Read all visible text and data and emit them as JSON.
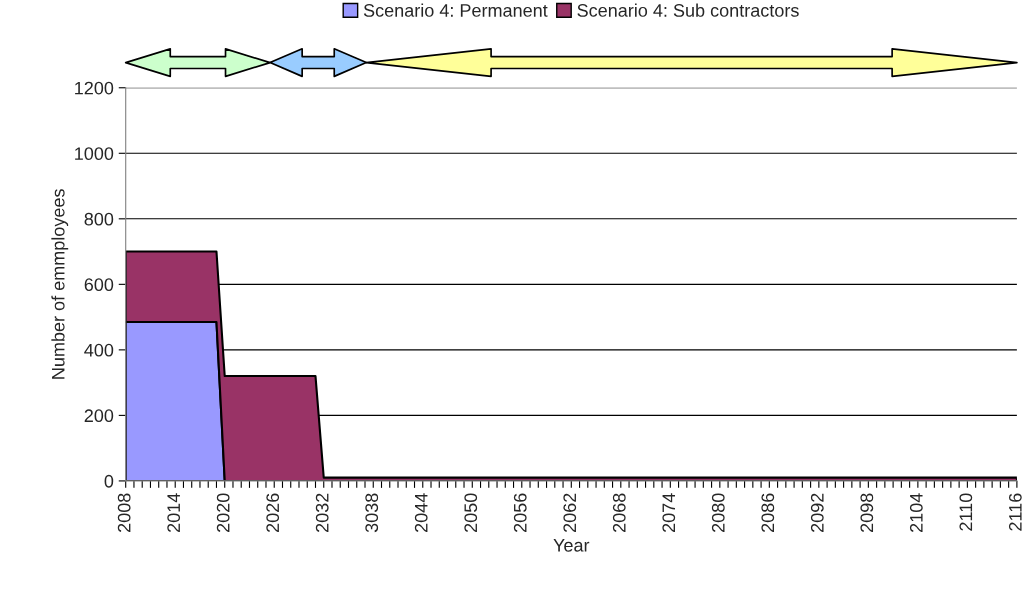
{
  "chart_data": {
    "type": "area",
    "stacked": true,
    "categories": [
      "2008",
      null,
      null,
      null,
      null,
      null,
      "2014",
      null,
      null,
      null,
      null,
      null,
      "2020",
      null,
      null,
      null,
      null,
      null,
      "2026",
      null,
      null,
      null,
      null,
      null,
      "2032",
      null,
      null,
      null,
      null,
      null,
      "3038",
      null,
      null,
      null,
      null,
      null,
      "2044",
      null,
      null,
      null,
      null,
      null,
      "2050",
      null,
      null,
      null,
      null,
      null,
      "2056",
      null,
      null,
      null,
      null,
      null,
      "2062",
      null,
      null,
      null,
      null,
      null,
      "2068",
      null,
      null,
      null,
      null,
      null,
      "2074",
      null,
      null,
      null,
      null,
      null,
      "2080",
      null,
      null,
      null,
      null,
      null,
      "2086",
      null,
      null,
      null,
      null,
      null,
      "2092",
      null,
      null,
      null,
      null,
      null,
      "2098",
      null,
      null,
      null,
      null,
      null,
      "2104",
      null,
      null,
      null,
      null,
      null,
      "2110",
      null,
      null,
      null,
      null,
      null,
      "2116"
    ],
    "series": [
      {
        "name": "Scenario 4: Permanent",
        "color": "#9999ff",
        "values": [
          485,
          485,
          485,
          485,
          485,
          485,
          485,
          485,
          485,
          485,
          485,
          485,
          0,
          0,
          0,
          0,
          0,
          0,
          0,
          0,
          0,
          0,
          0,
          0,
          0,
          0,
          0,
          0,
          0,
          0,
          0,
          0,
          0,
          0,
          0,
          0,
          0,
          0,
          0,
          0,
          0,
          0,
          0,
          0,
          0,
          0,
          0,
          0,
          0,
          0,
          0,
          0,
          0,
          0,
          0,
          0,
          0,
          0,
          0,
          0,
          0,
          0,
          0,
          0,
          0,
          0,
          0,
          0,
          0,
          0,
          0,
          0,
          0,
          0,
          0,
          0,
          0,
          0,
          0,
          0,
          0,
          0,
          0,
          0,
          0,
          0,
          0,
          0,
          0,
          0,
          0,
          0,
          0,
          0,
          0,
          0,
          0,
          0,
          0,
          0,
          0,
          0,
          0,
          0,
          0,
          0,
          0,
          0,
          0
        ]
      },
      {
        "name": "Scenario 4: Sub contractors",
        "color": "#993366",
        "values": [
          215,
          215,
          215,
          215,
          215,
          215,
          215,
          215,
          215,
          215,
          215,
          215,
          320,
          320,
          320,
          320,
          320,
          320,
          320,
          320,
          320,
          320,
          320,
          320,
          10,
          10,
          10,
          10,
          10,
          10,
          10,
          10,
          10,
          10,
          10,
          10,
          10,
          10,
          10,
          10,
          10,
          10,
          10,
          10,
          10,
          10,
          10,
          10,
          10,
          10,
          10,
          10,
          10,
          10,
          10,
          10,
          10,
          10,
          10,
          10,
          10,
          10,
          10,
          10,
          10,
          10,
          10,
          10,
          10,
          10,
          10,
          10,
          10,
          10,
          10,
          10,
          10,
          10,
          10,
          10,
          10,
          10,
          10,
          10,
          10,
          10,
          10,
          10,
          10,
          10,
          10,
          10,
          10,
          10,
          10,
          10,
          10,
          10,
          10,
          10,
          10,
          10,
          10,
          10,
          10,
          10,
          10,
          10,
          10
        ]
      }
    ],
    "xlabel": "Year",
    "ylabel": "Number of emmployees",
    "ylim": [
      0,
      1200
    ],
    "yticks": [
      0,
      200,
      400,
      600,
      800,
      1000,
      1200
    ],
    "grid": "y",
    "legend": "top"
  }
}
